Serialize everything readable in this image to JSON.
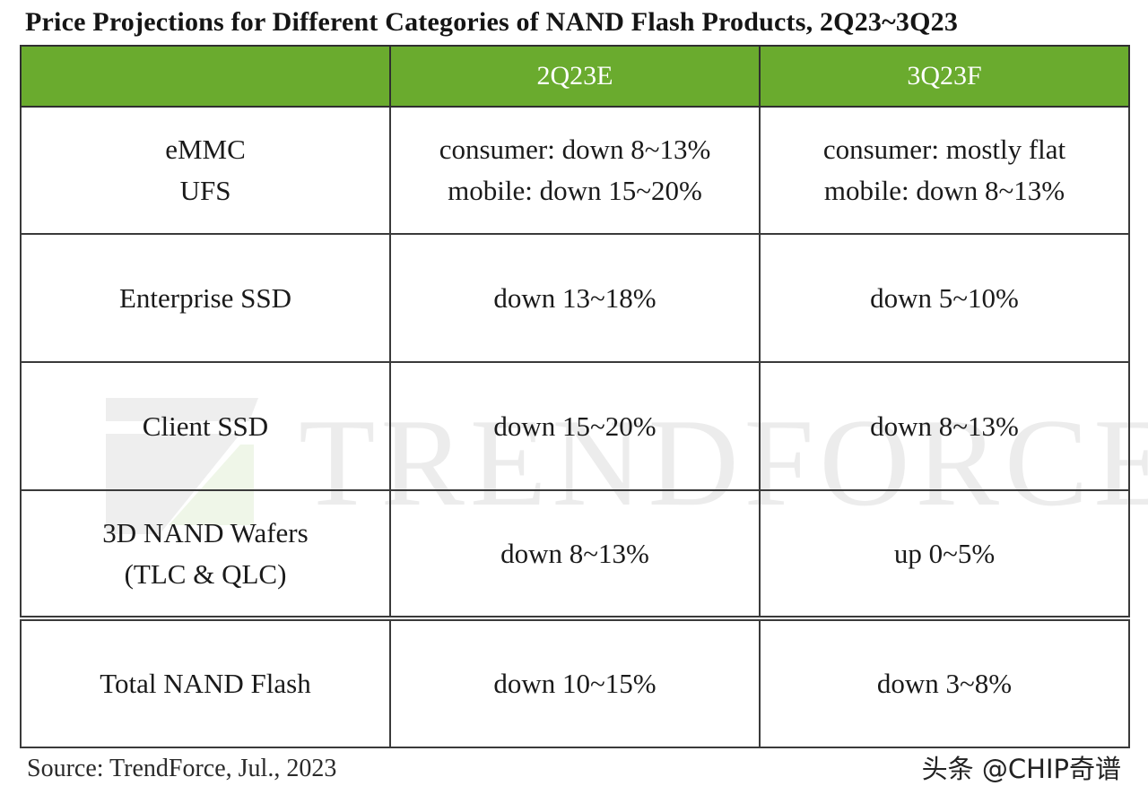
{
  "title": "Price Projections for Different Categories of NAND Flash Products, 2Q23~3Q23",
  "table": {
    "columns": [
      "",
      "2Q23E",
      "3Q23F"
    ],
    "rows": [
      {
        "category_lines": [
          "eMMC",
          "UFS"
        ],
        "q2_lines": [
          "consumer: down 8~13%",
          "mobile: down 15~20%"
        ],
        "q3_lines": [
          "consumer: mostly flat",
          "mobile: down 8~13%"
        ]
      },
      {
        "category_lines": [
          "Enterprise SSD"
        ],
        "q2_lines": [
          "down 13~18%"
        ],
        "q3_lines": [
          "down 5~10%"
        ]
      },
      {
        "category_lines": [
          "Client SSD"
        ],
        "q2_lines": [
          "down 15~20%"
        ],
        "q3_lines": [
          "down 8~13%"
        ]
      },
      {
        "category_lines": [
          "3D NAND Wafers",
          "(TLC & QLC)"
        ],
        "q2_lines": [
          "down 8~13%"
        ],
        "q3_lines": [
          "up 0~5%"
        ]
      },
      {
        "category_lines": [
          "Total NAND Flash"
        ],
        "q2_lines": [
          "down 10~15%"
        ],
        "q3_lines": [
          "down 3~8%"
        ]
      }
    ]
  },
  "watermark": {
    "text": "TRENDFORCE",
    "logo_icon": "trendforce-logo-icon"
  },
  "source": "Source: TrendForce, Jul., 2023",
  "credit": "头条 @CHIP奇谱",
  "colors": {
    "header_green": "#6aab2e",
    "header_text": "#ffffff",
    "border": "#3a3a3a"
  }
}
